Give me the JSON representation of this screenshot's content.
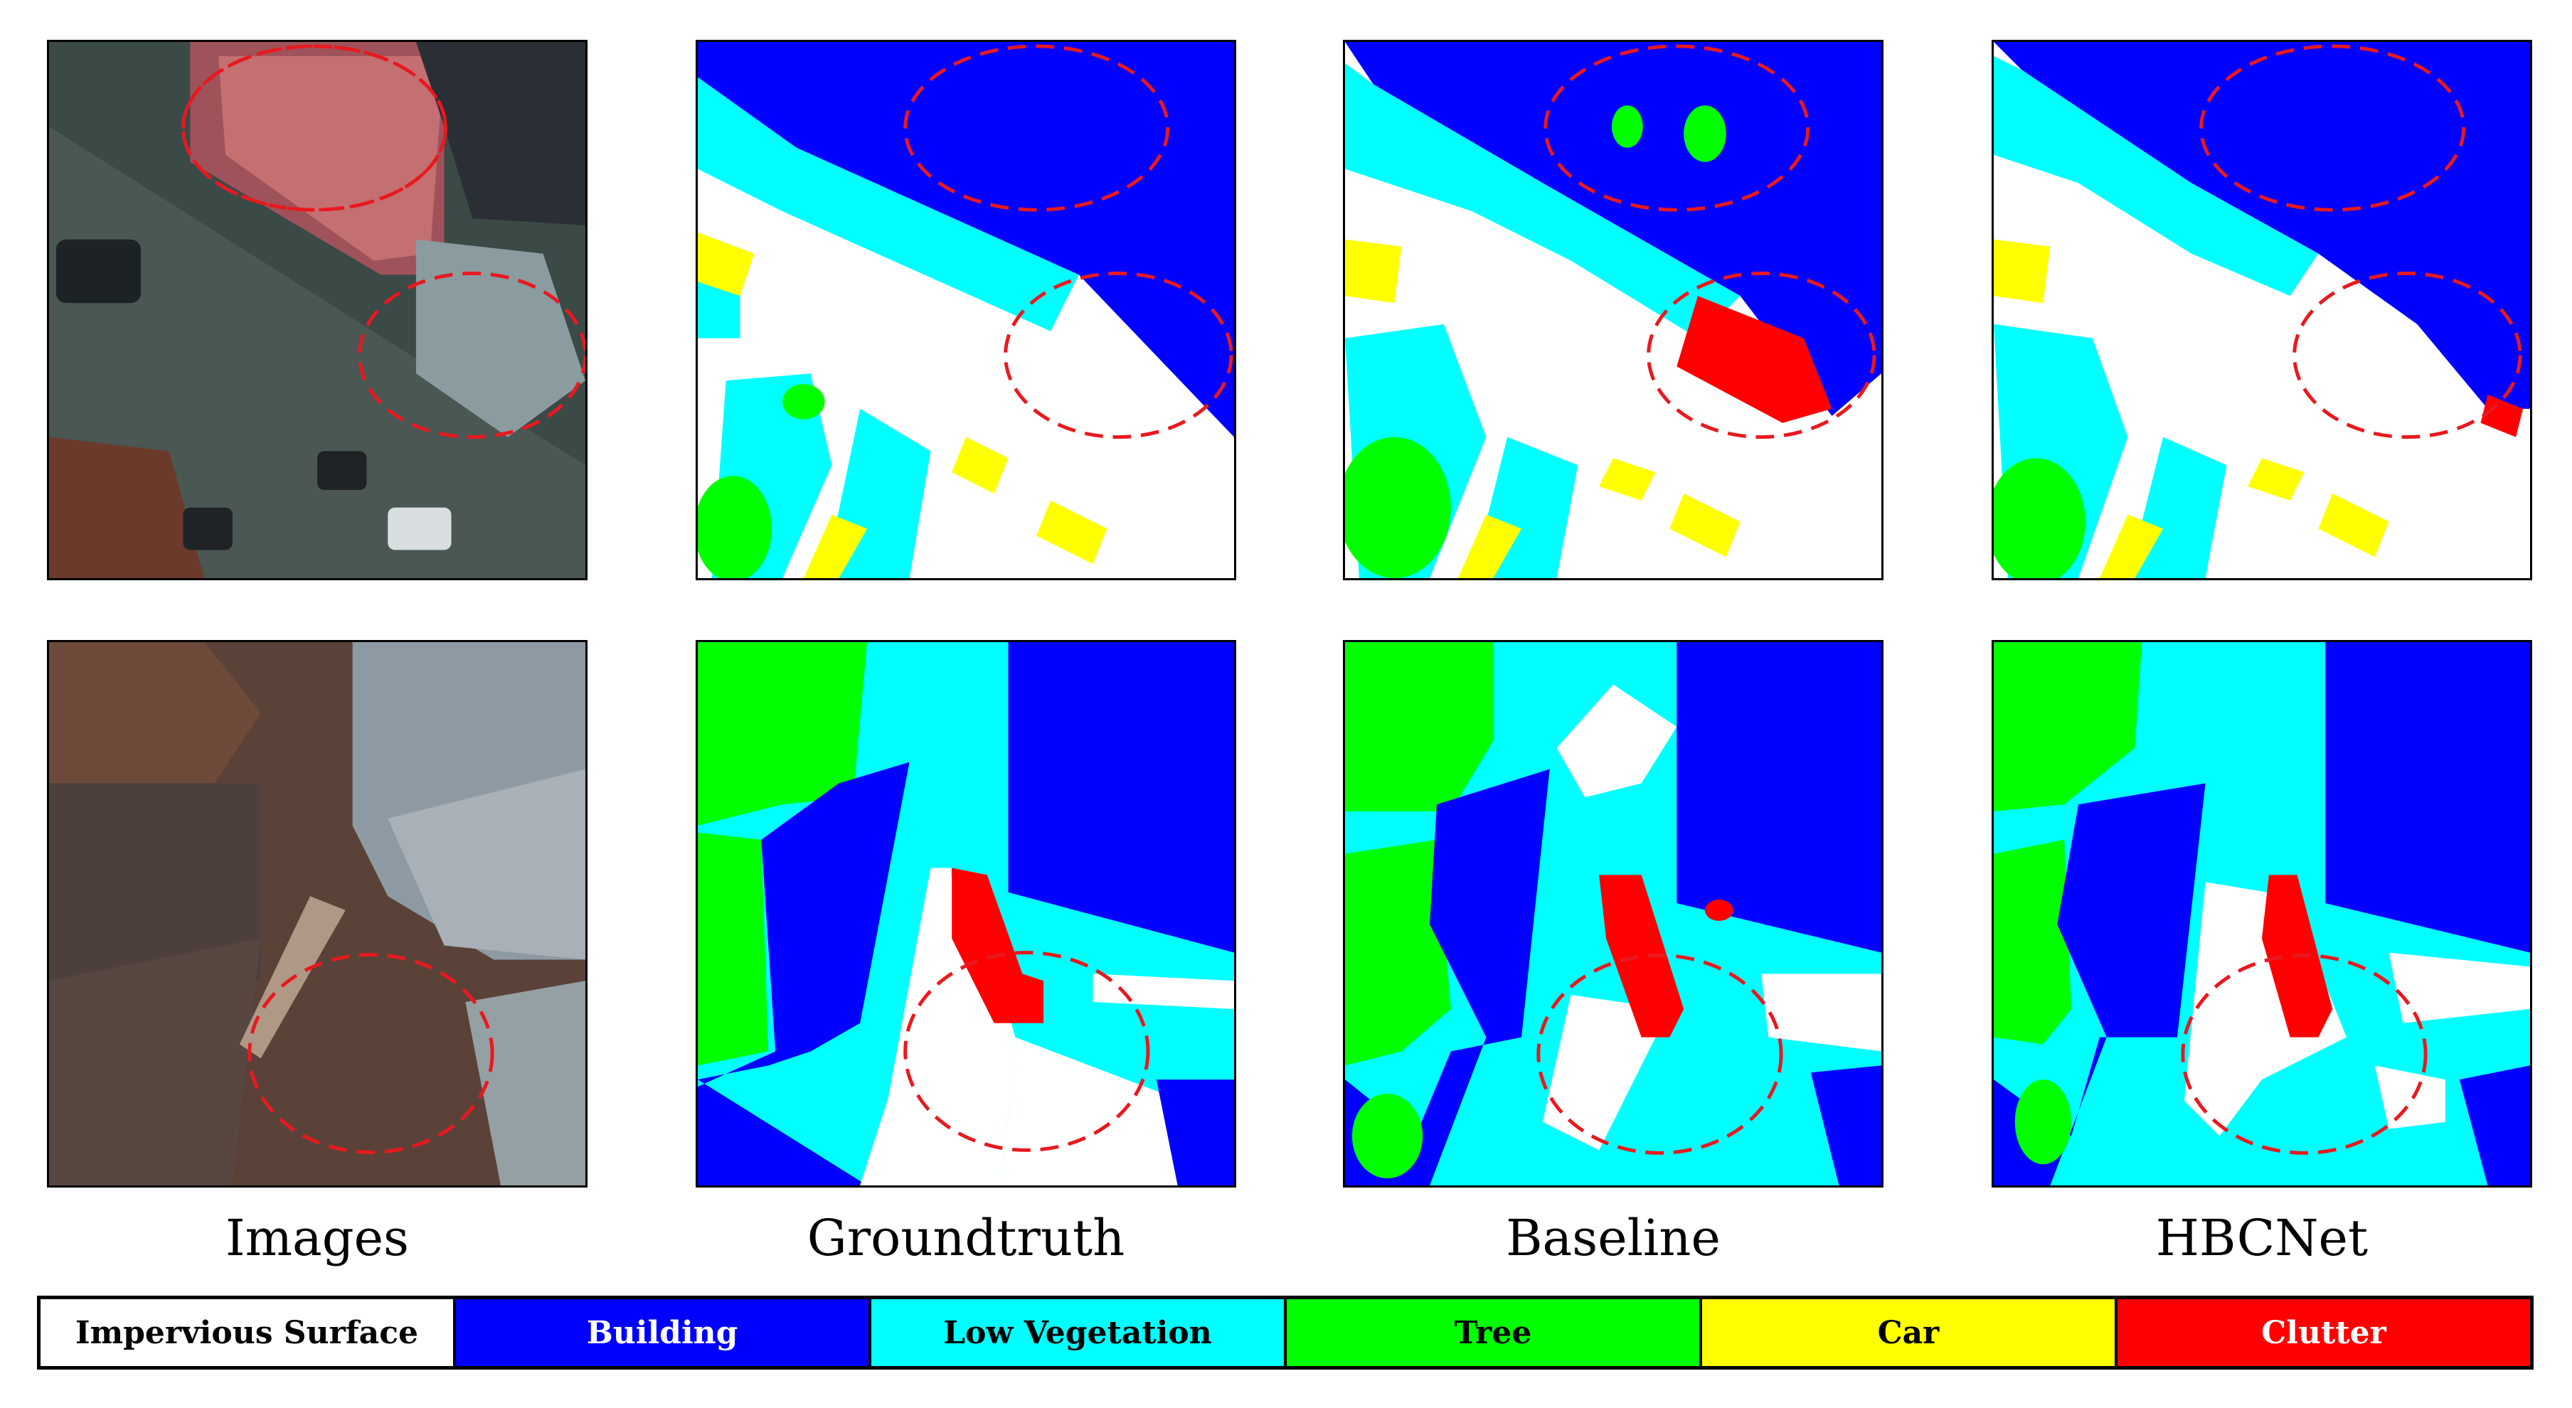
{
  "columns": [
    {
      "label": "Images"
    },
    {
      "label": "Groundtruth"
    },
    {
      "label": "Baseline"
    },
    {
      "label": "HBCNet"
    }
  ],
  "legend": [
    {
      "label": "Impervious Surface",
      "color": "#ffffff",
      "text_color": "#000000"
    },
    {
      "label": "Building",
      "color": "#0000ff",
      "text_color": "#ffffff"
    },
    {
      "label": "Low Vegetation",
      "color": "#00ffff",
      "text_color": "#000000"
    },
    {
      "label": "Tree",
      "color": "#00ff00",
      "text_color": "#000000"
    },
    {
      "label": "Car",
      "color": "#ffff00",
      "text_color": "#000000"
    },
    {
      "label": "Clutter",
      "color": "#ff0000",
      "text_color": "#ffffff"
    }
  ],
  "highlight_color": "#e8191f"
}
